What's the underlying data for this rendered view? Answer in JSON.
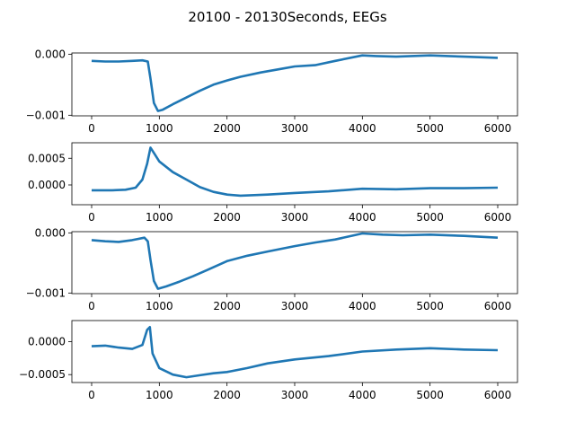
{
  "chart_data": {
    "type": "line",
    "title": "20100 - 20130Seconds, EEGs",
    "line_color": "#1f77b4",
    "grid": false,
    "x_range": [
      0,
      6000
    ],
    "x_ticks": [
      0,
      1000,
      2000,
      3000,
      4000,
      5000,
      6000
    ],
    "subplots": [
      {
        "ylim": [
          -0.00101,
          2e-05
        ],
        "y_ticks": [
          0.0,
          -0.001
        ],
        "y_tick_labels": [
          "0.000",
          "−0.001"
        ],
        "points": [
          [
            0,
            -0.00011
          ],
          [
            200,
            -0.00012
          ],
          [
            400,
            -0.00012
          ],
          [
            600,
            -0.00011
          ],
          [
            750,
            -0.0001
          ],
          [
            830,
            -0.00012
          ],
          [
            870,
            -0.0004
          ],
          [
            920,
            -0.0008
          ],
          [
            980,
            -0.00093
          ],
          [
            1050,
            -0.00091
          ],
          [
            1200,
            -0.00082
          ],
          [
            1400,
            -0.00071
          ],
          [
            1600,
            -0.0006
          ],
          [
            1800,
            -0.0005
          ],
          [
            2000,
            -0.00043
          ],
          [
            2200,
            -0.00037
          ],
          [
            2500,
            -0.0003
          ],
          [
            2800,
            -0.00024
          ],
          [
            3000,
            -0.0002
          ],
          [
            3300,
            -0.00018
          ],
          [
            3600,
            -0.00011
          ],
          [
            4000,
            -2e-05
          ],
          [
            4200,
            -3e-05
          ],
          [
            4500,
            -4e-05
          ],
          [
            5000,
            -2e-05
          ],
          [
            5500,
            -4e-05
          ],
          [
            6000,
            -6e-05
          ]
        ]
      },
      {
        "ylim": [
          -0.00037,
          0.00079
        ],
        "y_ticks": [
          0.0005,
          0.0
        ],
        "y_tick_labels": [
          "0.0005",
          "0.0000"
        ],
        "points": [
          [
            0,
            -0.0001
          ],
          [
            300,
            -0.0001
          ],
          [
            500,
            -9e-05
          ],
          [
            650,
            -5e-05
          ],
          [
            750,
            0.0001
          ],
          [
            820,
            0.0004
          ],
          [
            870,
            0.0007
          ],
          [
            920,
            0.0006
          ],
          [
            1000,
            0.00044
          ],
          [
            1200,
            0.00024
          ],
          [
            1400,
            0.0001
          ],
          [
            1600,
            -4e-05
          ],
          [
            1800,
            -0.00013
          ],
          [
            2000,
            -0.00018
          ],
          [
            2200,
            -0.0002
          ],
          [
            2600,
            -0.00018
          ],
          [
            3000,
            -0.00015
          ],
          [
            3500,
            -0.00012
          ],
          [
            4000,
            -7e-05
          ],
          [
            4500,
            -8e-05
          ],
          [
            5000,
            -6e-05
          ],
          [
            5500,
            -6e-05
          ],
          [
            6000,
            -5e-05
          ]
        ]
      },
      {
        "ylim": [
          -0.00101,
          2e-05
        ],
        "y_ticks": [
          0.0,
          -0.001
        ],
        "y_tick_labels": [
          "0.000",
          "−0.001"
        ],
        "points": [
          [
            0,
            -0.00012
          ],
          [
            200,
            -0.00014
          ],
          [
            400,
            -0.00015
          ],
          [
            600,
            -0.00012
          ],
          [
            780,
            -8e-05
          ],
          [
            830,
            -0.00014
          ],
          [
            870,
            -0.00045
          ],
          [
            920,
            -0.0008
          ],
          [
            980,
            -0.00093
          ],
          [
            1100,
            -0.00089
          ],
          [
            1300,
            -0.00081
          ],
          [
            1500,
            -0.00072
          ],
          [
            1700,
            -0.00062
          ],
          [
            2000,
            -0.00047
          ],
          [
            2300,
            -0.00038
          ],
          [
            2600,
            -0.00031
          ],
          [
            3000,
            -0.00022
          ],
          [
            3300,
            -0.00016
          ],
          [
            3600,
            -0.00011
          ],
          [
            4000,
            -1e-05
          ],
          [
            4300,
            -3e-05
          ],
          [
            4600,
            -4e-05
          ],
          [
            5000,
            -3e-05
          ],
          [
            5500,
            -5e-05
          ],
          [
            6000,
            -8e-05
          ]
        ]
      },
      {
        "ylim": [
          -0.00062,
          0.00032
        ],
        "y_ticks": [
          0.0,
          -0.0005
        ],
        "y_tick_labels": [
          "0.0000",
          "−0.0005"
        ],
        "points": [
          [
            0,
            -7e-05
          ],
          [
            200,
            -6e-05
          ],
          [
            400,
            -9e-05
          ],
          [
            600,
            -0.00011
          ],
          [
            750,
            -5e-05
          ],
          [
            820,
            0.00018
          ],
          [
            860,
            0.00022
          ],
          [
            900,
            -0.00018
          ],
          [
            1000,
            -0.0004
          ],
          [
            1200,
            -0.0005
          ],
          [
            1400,
            -0.00054
          ],
          [
            1600,
            -0.00051
          ],
          [
            1800,
            -0.00048
          ],
          [
            2000,
            -0.00046
          ],
          [
            2300,
            -0.0004
          ],
          [
            2600,
            -0.00033
          ],
          [
            3000,
            -0.00027
          ],
          [
            3500,
            -0.00022
          ],
          [
            4000,
            -0.00015
          ],
          [
            4500,
            -0.00012
          ],
          [
            5000,
            -0.0001
          ],
          [
            5500,
            -0.00012
          ],
          [
            6000,
            -0.00013
          ]
        ]
      }
    ]
  }
}
